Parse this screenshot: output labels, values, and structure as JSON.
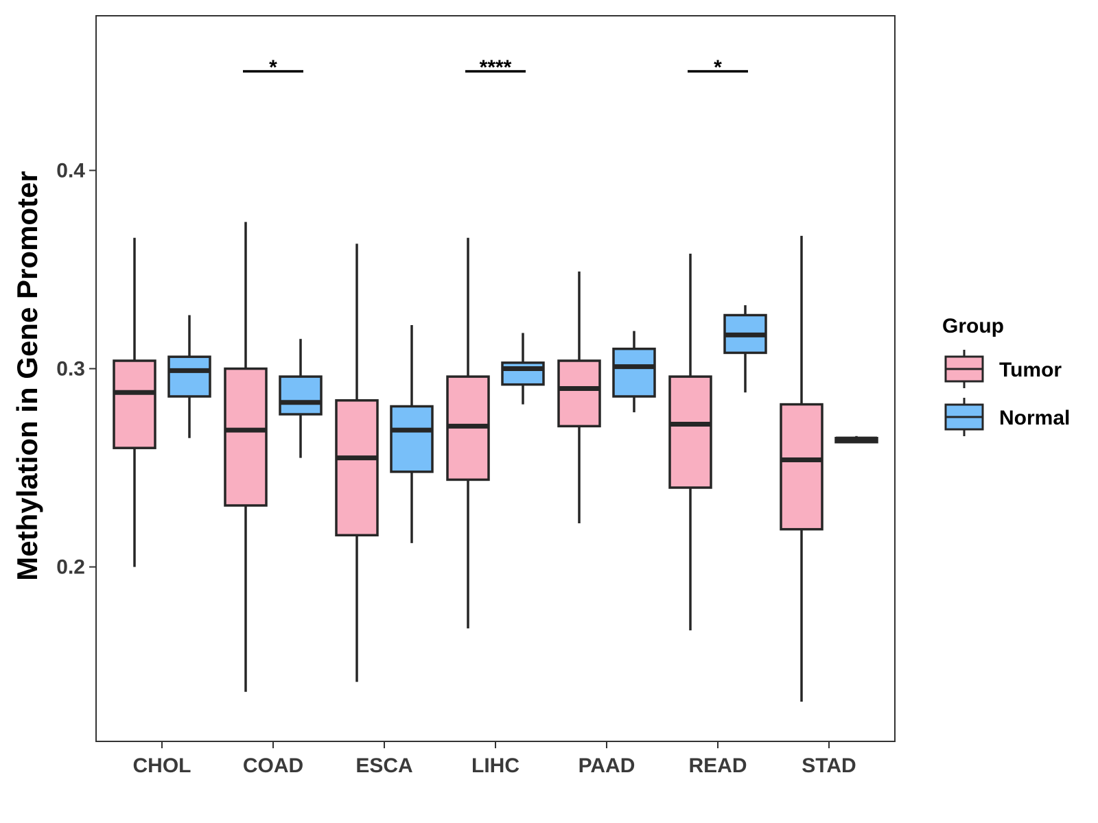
{
  "chart_data": {
    "type": "boxplot",
    "ylabel": "Methylation in Gene Promoter",
    "xlabel": "",
    "ylim": [
      0.112,
      0.478
    ],
    "y_ticks": [
      "0.2",
      "0.3",
      "0.4"
    ],
    "y_tick_values": [
      0.2,
      0.3,
      0.4
    ],
    "categories": [
      "CHOL",
      "COAD",
      "ESCA",
      "LIHC",
      "PAAD",
      "READ",
      "STAD"
    ],
    "legend": {
      "title": "Group",
      "position": "right",
      "entries": [
        {
          "name": "Tumor",
          "color": "#F9AFC1"
        },
        {
          "name": "Normal",
          "color": "#78BFF9"
        }
      ]
    },
    "series": [
      {
        "name": "Tumor",
        "color": "#F9AFC1",
        "boxes": [
          {
            "min": 0.2,
            "q1": 0.26,
            "median": 0.288,
            "q3": 0.304,
            "max": 0.366
          },
          {
            "min": 0.137,
            "q1": 0.231,
            "median": 0.269,
            "q3": 0.3,
            "max": 0.374
          },
          {
            "min": 0.142,
            "q1": 0.216,
            "median": 0.255,
            "q3": 0.284,
            "max": 0.363
          },
          {
            "min": 0.169,
            "q1": 0.244,
            "median": 0.271,
            "q3": 0.296,
            "max": 0.366
          },
          {
            "min": 0.222,
            "q1": 0.271,
            "median": 0.29,
            "q3": 0.304,
            "max": 0.349
          },
          {
            "min": 0.168,
            "q1": 0.24,
            "median": 0.272,
            "q3": 0.296,
            "max": 0.358
          },
          {
            "min": 0.132,
            "q1": 0.219,
            "median": 0.254,
            "q3": 0.282,
            "max": 0.367
          }
        ]
      },
      {
        "name": "Normal",
        "color": "#78BFF9",
        "boxes": [
          {
            "min": 0.265,
            "q1": 0.286,
            "median": 0.299,
            "q3": 0.306,
            "max": 0.327
          },
          {
            "min": 0.255,
            "q1": 0.277,
            "median": 0.283,
            "q3": 0.296,
            "max": 0.315
          },
          {
            "min": 0.212,
            "q1": 0.248,
            "median": 0.269,
            "q3": 0.281,
            "max": 0.322
          },
          {
            "min": 0.282,
            "q1": 0.292,
            "median": 0.3,
            "q3": 0.303,
            "max": 0.318
          },
          {
            "min": 0.278,
            "q1": 0.286,
            "median": 0.301,
            "q3": 0.31,
            "max": 0.319
          },
          {
            "min": 0.288,
            "q1": 0.308,
            "median": 0.317,
            "q3": 0.327,
            "max": 0.332
          },
          {
            "min": 0.263,
            "q1": 0.264,
            "median": 0.2645,
            "q3": 0.265,
            "max": 0.266
          }
        ]
      }
    ],
    "annotations": [
      {
        "category": "COAD",
        "label": "*",
        "y": 0.45
      },
      {
        "category": "LIHC",
        "label": "****",
        "y": 0.45
      },
      {
        "category": "READ",
        "label": "*",
        "y": 0.45
      }
    ]
  }
}
